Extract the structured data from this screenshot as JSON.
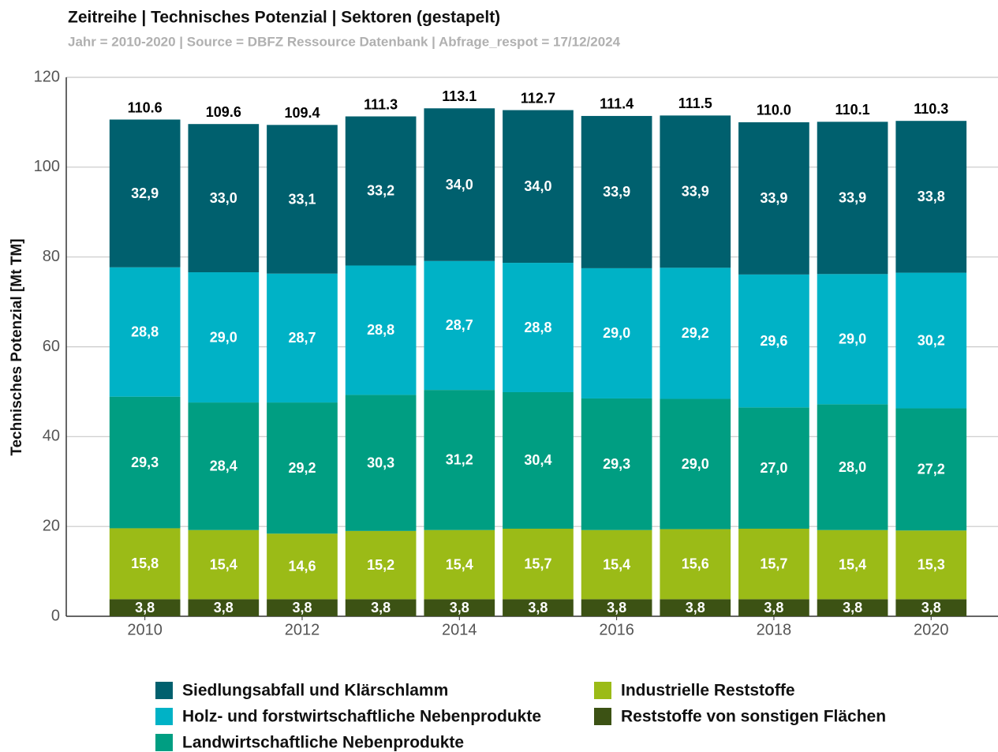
{
  "chart_data": {
    "type": "stacked_bar",
    "title": "Zeitreihe | Technisches Potenzial |  Sektoren (gestapelt)",
    "subtitle": "Jahr = 2010-2020 | Source = DBFZ Ressource Datenbank  | Abfrage_respot = 17/12/2024",
    "y_label": "Technisches Potenzial [Mt TM]",
    "x": [
      2010,
      2011,
      2012,
      2013,
      2014,
      2015,
      2016,
      2017,
      2018,
      2019,
      2020
    ],
    "xlim": [
      2009,
      2020.7
    ],
    "xticks": [
      2010,
      2012,
      2014,
      2016,
      2018,
      2020
    ],
    "ylim": [
      0,
      120
    ],
    "yticks": [
      0,
      20,
      40,
      60,
      80,
      100,
      120
    ],
    "grid": true,
    "series": [
      {
        "name": "Siedlungsabfall und Klärschlamm",
        "color": "#00606e",
        "values": [
          32.9,
          33.0,
          33.1,
          33.2,
          34.0,
          34.0,
          33.9,
          33.9,
          33.9,
          33.9,
          33.8
        ],
        "value_labels": [
          "32,9",
          "33,0",
          "33,1",
          "33,2",
          "34,0",
          "34,0",
          "33,9",
          "33,9",
          "33,9",
          "33,9",
          "33,8"
        ]
      },
      {
        "name": "Holz- und forstwirtschaftliche Nebenprodukte",
        "color": "#00b2c6",
        "values": [
          28.8,
          29.0,
          28.7,
          28.8,
          28.7,
          28.8,
          29.0,
          29.2,
          29.6,
          29.0,
          30.2
        ],
        "value_labels": [
          "28,8",
          "29,0",
          "28,7",
          "28,8",
          "28,7",
          "28,8",
          "29,0",
          "29,2",
          "29,6",
          "29,0",
          "30,2"
        ]
      },
      {
        "name": "Landwirtschaftliche Nebenprodukte",
        "color": "#009e82",
        "values": [
          29.3,
          28.4,
          29.2,
          30.3,
          31.2,
          30.4,
          29.3,
          29.0,
          27.0,
          28.0,
          27.2
        ],
        "value_labels": [
          "29,3",
          "28,4",
          "29,2",
          "30,3",
          "31,2",
          "30,4",
          "29,3",
          "29,0",
          "27,0",
          "28,0",
          "27,2"
        ]
      },
      {
        "name": "Industrielle Reststoffe",
        "color": "#9bbb17",
        "values": [
          15.8,
          15.4,
          14.6,
          15.2,
          15.4,
          15.7,
          15.4,
          15.6,
          15.7,
          15.4,
          15.3
        ],
        "value_labels": [
          "15,8",
          "15,4",
          "14,6",
          "15,2",
          "15,4",
          "15,7",
          "15,4",
          "15,6",
          "15,7",
          "15,4",
          "15,3"
        ]
      },
      {
        "name": "Reststoffe von sonstigen Flächen",
        "color": "#3c5214",
        "values": [
          3.8,
          3.8,
          3.8,
          3.8,
          3.8,
          3.8,
          3.8,
          3.8,
          3.8,
          3.8,
          3.8
        ],
        "value_labels": [
          "3,8",
          "3,8",
          "3,8",
          "3,8",
          "3,8",
          "3,8",
          "3,8",
          "3,8",
          "3,8",
          "3,8",
          "3,8"
        ]
      }
    ],
    "totals": {
      "values": [
        110.6,
        109.6,
        109.4,
        111.3,
        113.1,
        112.7,
        111.4,
        111.5,
        110.0,
        110.1,
        110.3
      ],
      "value_labels": [
        "110.6",
        "109.6",
        "109.4",
        "111.3",
        "113.1",
        "112.7",
        "111.4",
        "111.5",
        "110.0",
        "110.1",
        "110.3"
      ]
    }
  }
}
